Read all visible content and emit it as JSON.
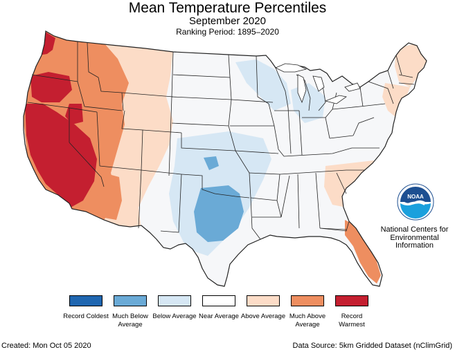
{
  "header": {
    "title": "Mean Temperature Percentiles",
    "subtitle": "September 2020",
    "period": "Ranking Period: 1895–2020"
  },
  "legend": {
    "items": [
      {
        "label": "Record Coldest",
        "color": "#1f66b0"
      },
      {
        "label": "Much Below Average",
        "color": "#6aaad6"
      },
      {
        "label": "Below Average",
        "color": "#d6e7f4"
      },
      {
        "label": "Near Average",
        "color": "#ffffff"
      },
      {
        "label": "Above Average",
        "color": "#fcdcc7"
      },
      {
        "label": "Much Above Average",
        "color": "#ee8e60"
      },
      {
        "label": "Record Warmest",
        "color": "#c41f30"
      }
    ]
  },
  "logo": {
    "text": "NOAA",
    "icon": "noaa-logo"
  },
  "organization": "National Centers for Environmental Information",
  "footer": {
    "created": "Created: Mon Oct 05 2020",
    "source": "Data Source: 5km Gridded Dataset (nClimGrid)"
  },
  "map_colors": {
    "land": "#f6f7f9",
    "border": "#222222",
    "record_warm": "#c41f30",
    "much_above": "#ee8e60",
    "above": "#fcdcc7",
    "below": "#d6e7f4",
    "much_below": "#6aaad6"
  }
}
